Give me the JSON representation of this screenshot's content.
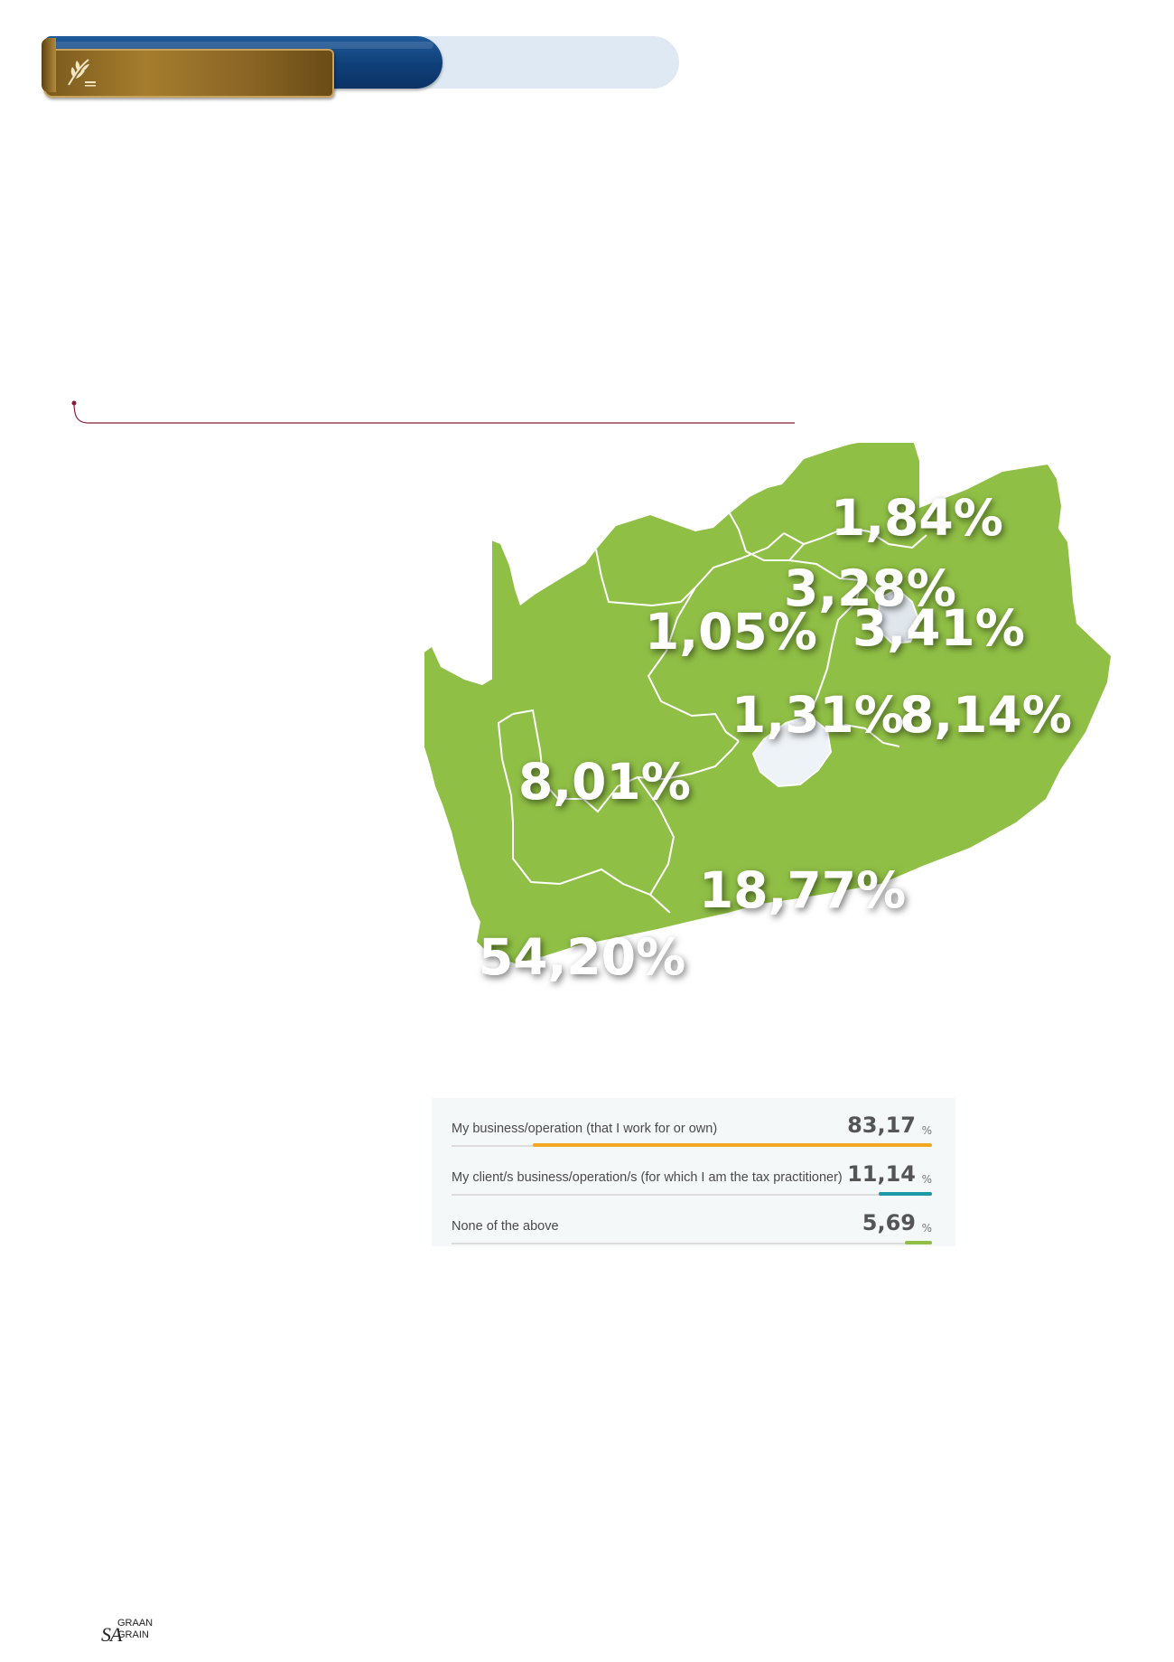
{
  "map": {
    "labels": [
      {
        "region": "limpopo",
        "value": "1,84%"
      },
      {
        "region": "gauteng",
        "value": "3,28%"
      },
      {
        "region": "mpumalanga",
        "value": "3,41%"
      },
      {
        "region": "north_west",
        "value": "1,05%"
      },
      {
        "region": "free_state",
        "value": "1,31%"
      },
      {
        "region": "kwazulu_natal",
        "value": "8,14%"
      },
      {
        "region": "northern_cape",
        "value": "8,01%"
      },
      {
        "region": "eastern_cape",
        "value": "18,77%"
      },
      {
        "region": "western_cape",
        "value": "54,20%"
      }
    ],
    "colors": {
      "land": "#8fbf45",
      "border": "#ffffff",
      "enclave": "#eef3f7"
    }
  },
  "results": {
    "rows": [
      {
        "label": "My business/operation (that I work for or own)",
        "value": "83,17",
        "unit": "%",
        "fraction": 0.8317,
        "color": "#f5a623"
      },
      {
        "label": "My client/s business/operation/s (for which I am the tax practitioner)",
        "value": "11,14",
        "unit": "%",
        "fraction": 0.1114,
        "color": "#1a9aa6"
      },
      {
        "label": "None of the above",
        "value": "5,69",
        "unit": "%",
        "fraction": 0.0569,
        "color": "#8fbf45"
      }
    ]
  },
  "footer": {
    "logo_sa": "SA",
    "logo_graan": "GRAAN",
    "logo_grain": "GRAIN"
  },
  "icons": {
    "banner_logo": "wheat-icon"
  }
}
